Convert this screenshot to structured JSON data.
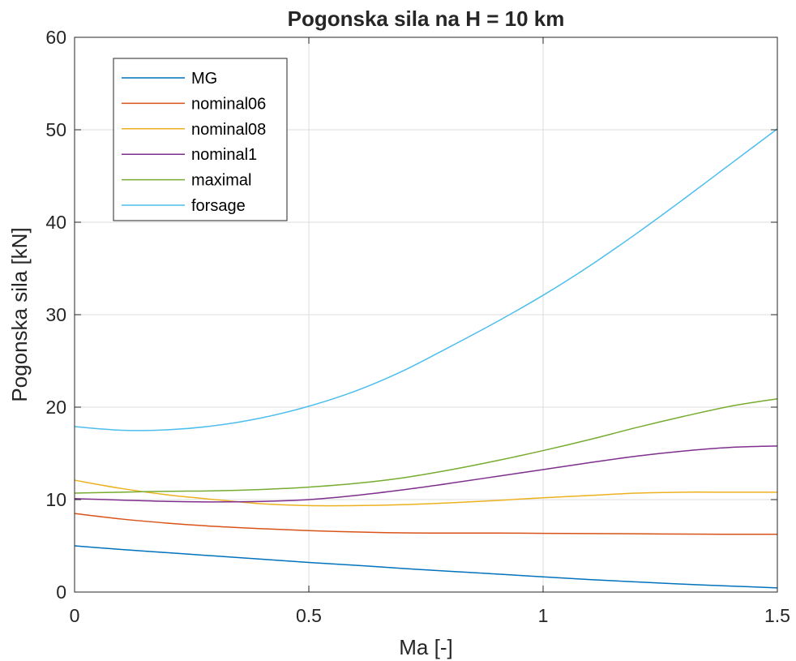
{
  "chart_data": {
    "type": "line",
    "title": "Pogonska sila na H = 10 km",
    "xlabel": "Ma [-]",
    "ylabel": "Pogonska sila [kN]",
    "xlim": [
      0,
      1.5
    ],
    "ylim": [
      0,
      60
    ],
    "xticks": [
      0,
      0.5,
      1,
      1.5
    ],
    "xtick_labels": [
      "0",
      "0.5",
      "1",
      "1.5"
    ],
    "yticks": [
      0,
      10,
      20,
      30,
      40,
      50,
      60
    ],
    "ytick_labels": [
      "0",
      "10",
      "20",
      "30",
      "40",
      "50",
      "60"
    ],
    "grid": true,
    "legend_position": "top-left",
    "x": [
      0,
      0.1,
      0.2,
      0.3,
      0.4,
      0.5,
      0.6,
      0.7,
      0.8,
      0.9,
      1.0,
      1.1,
      1.2,
      1.3,
      1.4,
      1.5
    ],
    "series": [
      {
        "name": "MG",
        "color": "#0072BD",
        "values": [
          5.0,
          4.6,
          4.25,
          3.9,
          3.55,
          3.2,
          2.9,
          2.55,
          2.25,
          1.95,
          1.65,
          1.35,
          1.1,
          0.85,
          0.65,
          0.45
        ]
      },
      {
        "name": "nominal06",
        "color": "#D95319",
        "values": [
          8.5,
          7.9,
          7.45,
          7.1,
          6.85,
          6.65,
          6.5,
          6.4,
          6.38,
          6.38,
          6.35,
          6.33,
          6.3,
          6.27,
          6.25,
          6.25
        ]
      },
      {
        "name": "nominal08",
        "color": "#EDB120",
        "values": [
          12.1,
          11.2,
          10.5,
          10.0,
          9.55,
          9.35,
          9.35,
          9.45,
          9.65,
          9.9,
          10.2,
          10.45,
          10.7,
          10.8,
          10.8,
          10.8
        ]
      },
      {
        "name": "nominal1",
        "color": "#7E2F8E",
        "values": [
          10.1,
          9.95,
          9.8,
          9.75,
          9.8,
          10.0,
          10.45,
          11.05,
          11.75,
          12.5,
          13.25,
          14.0,
          14.7,
          15.25,
          15.65,
          15.8
        ]
      },
      {
        "name": "maximal",
        "color": "#77AC30",
        "values": [
          10.7,
          10.8,
          10.9,
          10.95,
          11.1,
          11.35,
          11.75,
          12.35,
          13.2,
          14.2,
          15.3,
          16.5,
          17.8,
          19.0,
          20.1,
          20.9
        ]
      },
      {
        "name": "forsage",
        "color": "#4DBEEE",
        "values": [
          17.9,
          17.5,
          17.55,
          18.0,
          18.85,
          20.1,
          21.75,
          23.9,
          26.5,
          29.2,
          32.1,
          35.3,
          38.8,
          42.5,
          46.3,
          50.1
        ]
      }
    ]
  }
}
